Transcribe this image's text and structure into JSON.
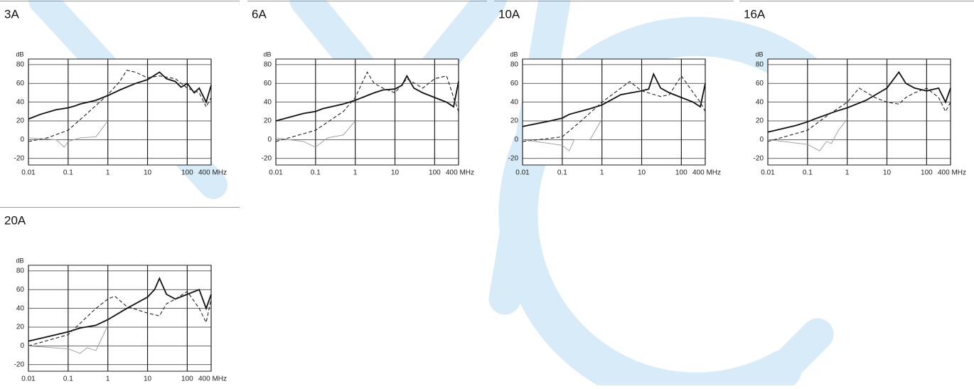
{
  "chart_data": [
    {
      "type": "line",
      "title": "3A",
      "ylabel": "dB",
      "log_x": true,
      "grid": true,
      "xlim": [
        0.01,
        400
      ],
      "ylim": [
        -27,
        86
      ],
      "xticks": [
        0.01,
        0.1,
        1,
        10,
        100,
        {
          "value": 400,
          "label": "400 MHz"
        }
      ],
      "yticks": [
        80,
        60,
        40,
        20,
        0,
        -20
      ],
      "series": [
        {
          "color": "#111111",
          "dash": "none",
          "width": 1.8,
          "x": [
            0.01,
            0.02,
            0.05,
            0.1,
            0.15,
            0.2,
            0.5,
            1,
            2,
            5,
            10,
            20,
            30,
            50,
            70,
            100,
            150,
            200,
            300,
            400
          ],
          "values": [
            22,
            27,
            32,
            34,
            36,
            38,
            42,
            47,
            53,
            60,
            64,
            72,
            65,
            62,
            56,
            60,
            50,
            55,
            40,
            58
          ]
        },
        {
          "color": "#222222",
          "dash": "5,3",
          "width": 1.1,
          "x": [
            0.01,
            0.03,
            0.1,
            0.3,
            1,
            2,
            3,
            5,
            10,
            20,
            50,
            100,
            200,
            300,
            400
          ],
          "values": [
            -2,
            2,
            10,
            28,
            48,
            62,
            74,
            72,
            66,
            68,
            65,
            55,
            50,
            35,
            45
          ]
        },
        {
          "color": "#999999",
          "dash": "none",
          "width": 0.9,
          "x": [
            0.01,
            0.05,
            0.08,
            0.1,
            0.2,
            0.5,
            1
          ],
          "values": [
            2,
            0,
            -8,
            -2,
            2,
            3,
            20
          ]
        }
      ]
    },
    {
      "type": "line",
      "title": "6A",
      "ylabel": "dB",
      "log_x": true,
      "grid": true,
      "xlim": [
        0.01,
        400
      ],
      "ylim": [
        -27,
        86
      ],
      "xticks": [
        0.01,
        0.1,
        1,
        10,
        100,
        {
          "value": 400,
          "label": "400 MHz"
        }
      ],
      "yticks": [
        80,
        60,
        40,
        20,
        0,
        -20
      ],
      "series": [
        {
          "color": "#111111",
          "dash": "none",
          "width": 1.8,
          "x": [
            0.01,
            0.05,
            0.1,
            0.15,
            0.5,
            1,
            3,
            5,
            10,
            15,
            20,
            30,
            50,
            100,
            200,
            300,
            400
          ],
          "values": [
            20,
            28,
            30,
            33,
            38,
            42,
            50,
            53,
            54,
            58,
            68,
            55,
            50,
            45,
            40,
            35,
            62
          ]
        },
        {
          "color": "#222222",
          "dash": "5,3",
          "width": 1.1,
          "x": [
            0.01,
            0.1,
            0.5,
            1,
            2,
            3,
            5,
            10,
            20,
            50,
            100,
            200,
            300,
            400
          ],
          "values": [
            -2,
            10,
            30,
            45,
            72,
            60,
            55,
            50,
            65,
            55,
            65,
            68,
            45,
            30
          ]
        },
        {
          "color": "#999999",
          "dash": "none",
          "width": 0.9,
          "x": [
            0.01,
            0.05,
            0.1,
            0.2,
            0.5,
            1
          ],
          "values": [
            2,
            -2,
            -8,
            2,
            5,
            20
          ]
        }
      ]
    },
    {
      "type": "line",
      "title": "10A",
      "ylabel": "dB",
      "log_x": true,
      "grid": true,
      "xlim": [
        0.01,
        400
      ],
      "ylim": [
        -27,
        86
      ],
      "xticks": [
        0.01,
        0.1,
        1,
        10,
        100,
        {
          "value": 400,
          "label": "400 MHz"
        }
      ],
      "yticks": [
        80,
        60,
        40,
        20,
        0,
        -20
      ],
      "series": [
        {
          "color": "#111111",
          "dash": "none",
          "width": 1.8,
          "x": [
            0.01,
            0.05,
            0.1,
            0.15,
            0.5,
            1,
            3,
            10,
            15,
            20,
            30,
            50,
            100,
            200,
            300,
            400
          ],
          "values": [
            14,
            20,
            23,
            27,
            33,
            37,
            48,
            52,
            54,
            70,
            55,
            50,
            45,
            40,
            35,
            60
          ]
        },
        {
          "color": "#222222",
          "dash": "5,3",
          "width": 1.1,
          "x": [
            0.01,
            0.1,
            0.3,
            1,
            3,
            5,
            10,
            30,
            50,
            100,
            200,
            300,
            400
          ],
          "values": [
            -2,
            3,
            20,
            40,
            55,
            62,
            52,
            46,
            48,
            68,
            50,
            40,
            30
          ]
        },
        {
          "color": "#999999",
          "dash": "none",
          "width": 0.9,
          "x": [
            0.01,
            0.1,
            0.15,
            0.2,
            0.5,
            1
          ],
          "values": [
            0,
            -6,
            -12,
            0,
            0,
            22
          ]
        }
      ]
    },
    {
      "type": "line",
      "title": "16A",
      "ylabel": "dB",
      "log_x": true,
      "grid": true,
      "xlim": [
        0.01,
        400
      ],
      "ylim": [
        -27,
        86
      ],
      "xticks": [
        0.01,
        0.1,
        1,
        10,
        100,
        {
          "value": 400,
          "label": "400 MHz"
        }
      ],
      "yticks": [
        80,
        60,
        40,
        20,
        0,
        -20
      ],
      "series": [
        {
          "color": "#111111",
          "dash": "none",
          "width": 1.8,
          "x": [
            0.01,
            0.05,
            0.1,
            0.15,
            0.5,
            1,
            3,
            10,
            20,
            30,
            50,
            100,
            200,
            300,
            400
          ],
          "values": [
            8,
            15,
            19,
            22,
            30,
            34,
            42,
            55,
            72,
            60,
            55,
            52,
            55,
            40,
            55
          ]
        },
        {
          "color": "#222222",
          "dash": "5,3",
          "width": 1.1,
          "x": [
            0.01,
            0.1,
            0.3,
            1,
            2,
            5,
            10,
            20,
            30,
            50,
            100,
            200,
            300,
            400
          ],
          "values": [
            -2,
            10,
            25,
            40,
            55,
            45,
            40,
            38,
            45,
            50,
            55,
            45,
            30,
            40
          ]
        },
        {
          "color": "#999999",
          "dash": "none",
          "width": 0.9,
          "x": [
            0.01,
            0.1,
            0.2,
            0.3,
            0.4,
            0.6,
            1
          ],
          "values": [
            0,
            -5,
            -12,
            -2,
            -4,
            10,
            22
          ]
        }
      ]
    },
    {
      "type": "line",
      "title": "20A",
      "ylabel": "dB",
      "log_x": true,
      "grid": true,
      "xlim": [
        0.01,
        400
      ],
      "ylim": [
        -27,
        86
      ],
      "xticks": [
        0.01,
        0.1,
        1,
        10,
        100,
        {
          "value": 400,
          "label": "400 MHz"
        }
      ],
      "yticks": [
        80,
        60,
        40,
        20,
        0,
        -20
      ],
      "series": [
        {
          "color": "#111111",
          "dash": "none",
          "width": 1.8,
          "x": [
            0.01,
            0.05,
            0.1,
            0.2,
            0.5,
            1,
            3,
            10,
            15,
            20,
            30,
            50,
            100,
            200,
            300,
            400
          ],
          "values": [
            5,
            12,
            15,
            19,
            22,
            28,
            40,
            52,
            60,
            72,
            55,
            50,
            55,
            60,
            40,
            55
          ]
        },
        {
          "color": "#222222",
          "dash": "5,3",
          "width": 1.1,
          "x": [
            0.01,
            0.1,
            0.5,
            1,
            1.5,
            3,
            10,
            20,
            30,
            50,
            100,
            200,
            300,
            400
          ],
          "values": [
            0,
            12,
            40,
            50,
            53,
            42,
            35,
            32,
            45,
            50,
            58,
            40,
            25,
            50
          ]
        },
        {
          "color": "#999999",
          "dash": "none",
          "width": 0.9,
          "x": [
            0.01,
            0.1,
            0.2,
            0.3,
            0.5,
            1
          ],
          "values": [
            0,
            -3,
            -8,
            -2,
            -5,
            22
          ]
        }
      ]
    }
  ]
}
